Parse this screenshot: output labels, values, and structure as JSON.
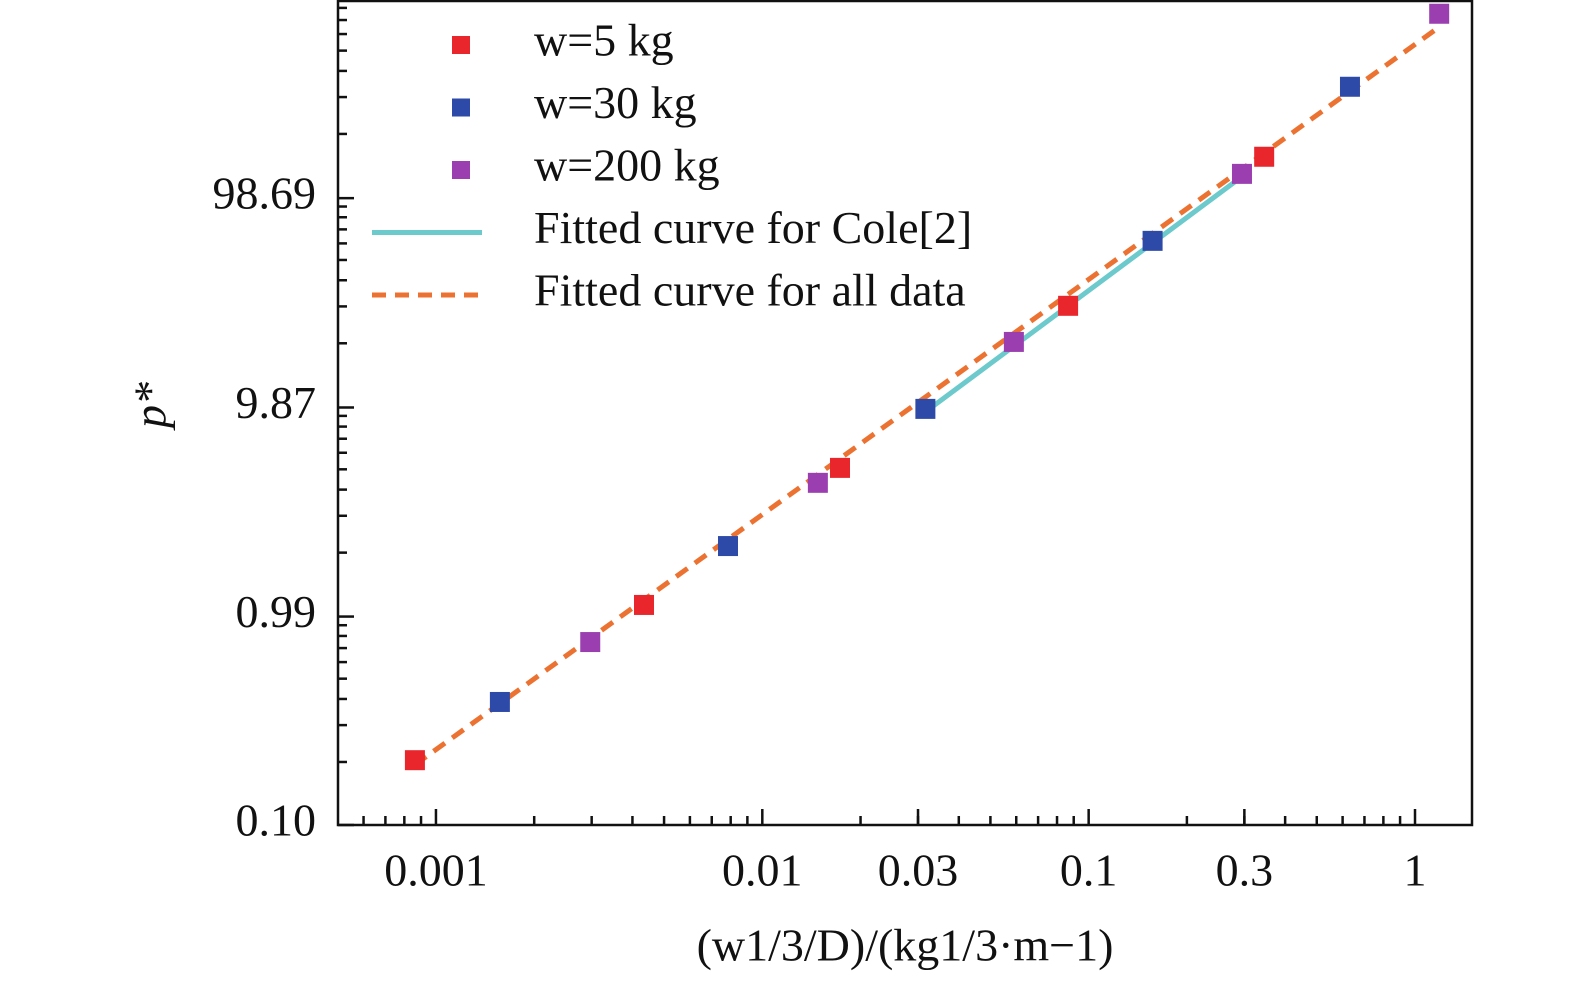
{
  "chart_data": {
    "type": "scatter",
    "xlabel": "(w1/3/D)/(kg1/3·m−1)",
    "ylabel": "p*",
    "xscale": "log",
    "yscale": "log",
    "minor_ticks": true,
    "legend": "upper left",
    "xlim": [
      0.000501,
      1.495
    ],
    "ylim": [
      0.1,
      863
    ],
    "xticks": [
      0.001,
      0.01,
      0.03,
      0.1,
      0.3,
      1
    ],
    "yticks": [
      {
        "value": 0.1,
        "label": "0.10"
      },
      0.99,
      9.87,
      98.69
    ],
    "series": [
      {
        "name": "w=5 kg",
        "kind": "marker",
        "color": "#e8262c",
        "x": [
          0.000862,
          0.00434,
          0.0173,
          0.0865,
          0.345
        ],
        "values": [
          0.204,
          1.125,
          5.08,
          30.2,
          155.6
        ]
      },
      {
        "name": "w=30 kg",
        "kind": "marker",
        "color": "#2e4aa8",
        "x": [
          0.00157,
          0.00785,
          0.0316,
          0.157,
          0.632
        ],
        "values": [
          0.387,
          2.15,
          9.72,
          61.7,
          336
        ]
      },
      {
        "name": "w=200 kg",
        "kind": "marker",
        "color": "#9b3fb0",
        "x": [
          0.00297,
          0.0148,
          0.059,
          0.295,
          1.186
        ],
        "values": [
          0.748,
          4.31,
          20.3,
          128.9,
          750
        ]
      },
      {
        "name": "Fitted curve for Cole[2]",
        "kind": "line",
        "color": "#6cc9cc",
        "x": [
          0.0316,
          0.3
        ],
        "values": [
          9.4,
          127.6
        ]
      },
      {
        "name": "Fitted curve for all data",
        "kind": "dashed",
        "color": "#ec7232",
        "x": [
          0.000862,
          1.153
        ],
        "values": [
          0.194,
          628
        ]
      }
    ]
  }
}
